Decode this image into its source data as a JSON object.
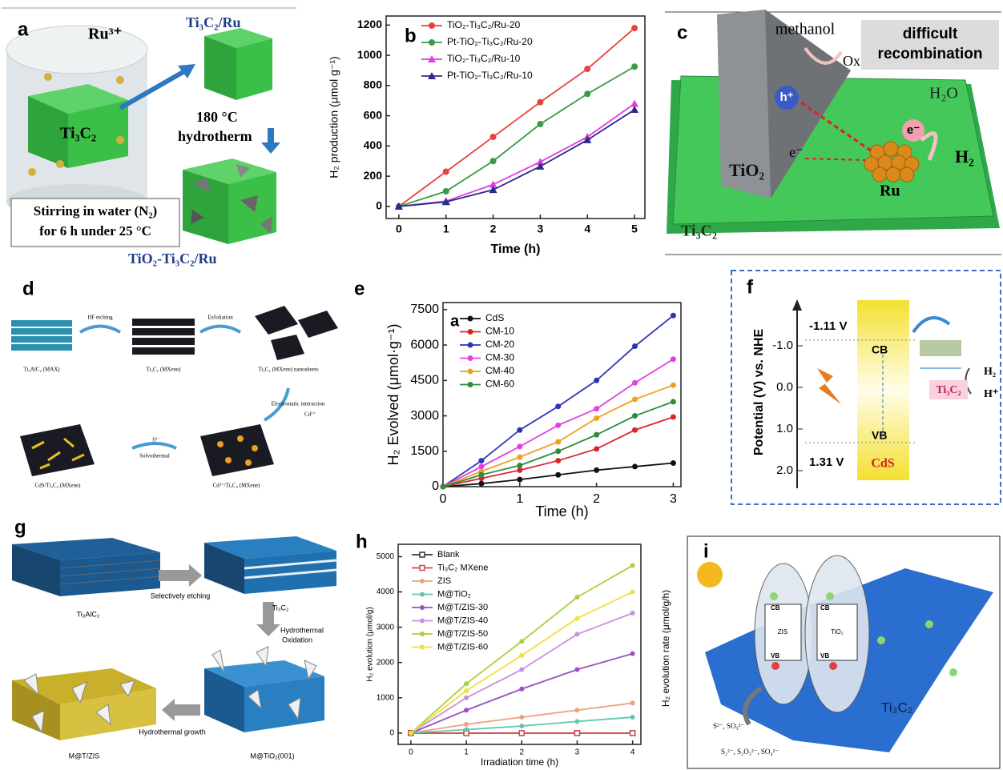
{
  "panels": {
    "a": {
      "label": "a",
      "ion": "Ru³⁺",
      "product": "Ti₃C₂/Ru",
      "substrate": "Ti₃C₂",
      "temperature": "180 °C",
      "process": "hydrotherm",
      "stirring_1": "Stirring in water (N₂)",
      "stirring_2": "for 6 h under 25 °C",
      "final": "TiO₂-Ti₃C₂/Ru"
    },
    "c": {
      "label": "c",
      "donor": "methanol",
      "oxidized": "Ox",
      "note_1": "difficult",
      "note_2": "recombination",
      "hole": "h⁺",
      "electron_1": "e⁻",
      "electron_2": "e⁻",
      "water": "H₂O",
      "hydrogen": "H₂",
      "semiconductor": "TiO₂",
      "metal": "Ru",
      "support": "Ti₃C₂"
    },
    "d": {
      "label": "d",
      "step_1": "Ti₃AlC₂ (MAX)",
      "arrow_1": "HF etching",
      "step_2": "Ti₃C₂ (MXene)",
      "arrow_2": "Exfoliation",
      "step_3": "Ti₃C₂ (MXene) nanosheets",
      "arrow_3": "Electrostatic interaction",
      "ion_1": "Cd²⁺",
      "step_4": "Cd²⁺/Ti₃C₂ (MXene)",
      "ion_2": "S²⁻",
      "arrow_4": "Solvothermal",
      "step_5": "CdS/Ti₃C₂ (MXene)"
    },
    "f": {
      "label": "f",
      "axis_label": "Potential (V) vs. NHE",
      "ticks": [
        "-1.0",
        "0.0",
        "1.0",
        "2.0"
      ],
      "cb_potential": "-1.11 V",
      "vb_potential": "1.31 V",
      "cb": "CB",
      "vb": "VB",
      "semiconductor": "CdS",
      "cocatalyst": "Ti₃C₂",
      "product": "H₂",
      "reactant": "H⁺"
    },
    "g": {
      "label": "g",
      "step_1": "Ti₃AlC₂",
      "arrow_1": "Selectively etching",
      "step_2": "Ti₃C₂",
      "arrow_2_1": "Hydrothermal",
      "arrow_2_2": "Oxidation",
      "step_3": "M@TiO₂(001)",
      "arrow_3": "Hydrothermal growth",
      "step_4": "M@T/ZIS"
    },
    "i": {
      "label": "i",
      "axis_label": "H₂ evolution rate (μmol/g/h)",
      "cb_1": "CB",
      "vb_1": "VB",
      "cb_2": "CB",
      "vb_2": "VB",
      "zis": "ZIS",
      "tio2": "TiO₂",
      "support": "Ti₃C₂",
      "reagents": "S²⁻, SO₃²⁻",
      "products": "S₂²⁻, S₂O₃²⁻, SO₄²⁻"
    }
  },
  "chart_data": [
    {
      "type": "line",
      "panel_label": "b",
      "x_label": "Time (h)",
      "y_label": "H₂ production (μmol g⁻¹)",
      "x": [
        0,
        1,
        2,
        3,
        4,
        5
      ],
      "xlim": [
        -0.27,
        5.22
      ],
      "xticks": [
        0,
        1,
        2,
        3,
        4,
        5
      ],
      "ylim": [
        -80,
        1260
      ],
      "yticks": [
        0,
        200,
        400,
        600,
        800,
        1000,
        1200
      ],
      "series": [
        {
          "name": "TiO₂-Ti₃C₂/Ru-20",
          "color": "#e8413c",
          "marker": "circle",
          "values": [
            0,
            230,
            460,
            690,
            910,
            1180
          ]
        },
        {
          "name": "Pt-TiO₂-Ti₃C₂/Ru-20",
          "color": "#3a9a45",
          "marker": "circle",
          "values": [
            0,
            100,
            300,
            545,
            745,
            925
          ]
        },
        {
          "name": "TiO₂-Ti₃C₂/Ru-10",
          "color": "#e040e0",
          "marker": "triangle",
          "values": [
            0,
            35,
            145,
            295,
            460,
            680
          ]
        },
        {
          "name": "Pt-TiO₂-Ti₃C₂/Ru-10",
          "color": "#2a2a8c",
          "marker": "triangle",
          "values": [
            0,
            30,
            110,
            265,
            440,
            640
          ]
        }
      ]
    },
    {
      "type": "line",
      "panel_label": "e",
      "inner_label": "a",
      "x_label": "Time (h)",
      "y_label": "H₂ Evolved (μmol·g⁻¹)",
      "x": [
        0,
        0.5,
        1,
        1.5,
        2,
        2.5,
        3
      ],
      "xlim": [
        0,
        3.1
      ],
      "xticks": [
        0,
        1,
        2,
        3
      ],
      "ylim": [
        0,
        7800
      ],
      "yticks": [
        0,
        1500,
        3000,
        4500,
        6000,
        7500
      ],
      "series": [
        {
          "name": "CdS",
          "color": "#111111",
          "marker": "circle",
          "values": [
            0,
            130,
            300,
            500,
            700,
            850,
            1000
          ]
        },
        {
          "name": "CM-10",
          "color": "#d9262c",
          "marker": "circle",
          "values": [
            0,
            350,
            700,
            1100,
            1600,
            2400,
            2950
          ]
        },
        {
          "name": "CM-20",
          "color": "#2b35b5",
          "marker": "circle",
          "values": [
            0,
            1100,
            2400,
            3400,
            4500,
            5950,
            7250
          ]
        },
        {
          "name": "CM-30",
          "color": "#e040e0",
          "marker": "circle",
          "values": [
            0,
            850,
            1700,
            2600,
            3300,
            4400,
            5400
          ]
        },
        {
          "name": "CM-40",
          "color": "#f0a020",
          "marker": "circle",
          "values": [
            0,
            650,
            1250,
            1900,
            2900,
            3700,
            4300
          ]
        },
        {
          "name": "CM-60",
          "color": "#2e8b3a",
          "marker": "circle",
          "values": [
            0,
            500,
            900,
            1500,
            2200,
            3000,
            3600
          ]
        }
      ]
    },
    {
      "type": "line",
      "panel_label": "h",
      "x_label": "Irradiation time (h)",
      "y_label": "H₂ evolution (μmol/g)",
      "x": [
        0,
        1,
        2,
        3,
        4
      ],
      "xlim": [
        -0.23,
        4.15
      ],
      "xticks": [
        0,
        1,
        2,
        3,
        4
      ],
      "ylim": [
        -320,
        5350
      ],
      "yticks": [
        0,
        1000,
        2000,
        3000,
        4000,
        5000
      ],
      "series": [
        {
          "name": "Blank",
          "color": "#333333",
          "marker": "square",
          "values": [
            0,
            0,
            0,
            0,
            0
          ]
        },
        {
          "name": "Ti₃C₂ MXene",
          "color": "#d04a4a",
          "marker": "square",
          "values": [
            0,
            0,
            0,
            0,
            0
          ]
        },
        {
          "name": "ZIS",
          "color": "#f0a080",
          "marker": "circle",
          "values": [
            0,
            250,
            450,
            650,
            850
          ]
        },
        {
          "name": "M@TiO₂",
          "color": "#60c8b0",
          "marker": "circle",
          "values": [
            0,
            100,
            200,
            330,
            450
          ]
        },
        {
          "name": "M@T/ZIS-30",
          "color": "#9a50c0",
          "marker": "circle",
          "values": [
            0,
            650,
            1250,
            1800,
            2250
          ]
        },
        {
          "name": "M@T/ZIS-40",
          "color": "#c890e0",
          "marker": "circle",
          "values": [
            0,
            1000,
            1800,
            2800,
            3400
          ]
        },
        {
          "name": "M@T/ZIS-50",
          "color": "#a8d040",
          "marker": "circle",
          "values": [
            0,
            1400,
            2600,
            3850,
            4750
          ]
        },
        {
          "name": "M@T/ZIS-60",
          "color": "#f0e040",
          "marker": "circle",
          "values": [
            0,
            1200,
            2200,
            3250,
            4000
          ]
        }
      ]
    }
  ]
}
